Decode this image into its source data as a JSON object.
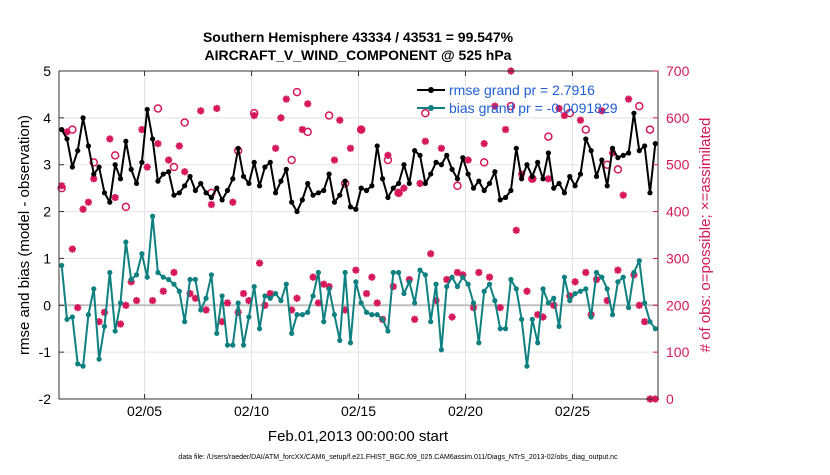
{
  "chart_data": {
    "type": "line",
    "title_line1": "Southern Hemisphere 43334 / 43531 = 99.547%",
    "title_line2": "AIRCRAFT_V_WIND_COMPONENT @ 525 hPa",
    "xlabel": "Feb.01,2013 00:00:00 start",
    "ylabel_left": "rmse and bias (model - observation)",
    "ylabel_right": "# of obs: o=possible; ×=assimilated",
    "footer": "data file: /Users/raeder/DAI/ATM_forcXX/CAM6_setup/f.e21.FHIST_BGC.f09_025.CAM6assim.011/Diags_NTrS_2013-02/obs_diag_output.nc",
    "xlim": [
      1.0,
      29.0
    ],
    "ylim_left": [
      -2,
      5
    ],
    "ylim_right": [
      0,
      700
    ],
    "x_ticks": [
      5,
      10,
      15,
      20,
      25
    ],
    "x_tick_labels": [
      "02/05",
      "02/10",
      "02/15",
      "02/20",
      "02/25"
    ],
    "y_ticks_left": [
      -2,
      -1,
      0,
      1,
      2,
      3,
      4,
      5
    ],
    "y_tick_labels_left": [
      "-2",
      "-1",
      "0",
      "1",
      "2",
      "3",
      "4",
      "5"
    ],
    "y_ticks_right": [
      0,
      100,
      200,
      300,
      400,
      500,
      600,
      700
    ],
    "y_tick_labels_right": [
      "0",
      "100",
      "200",
      "300",
      "400",
      "500",
      "600",
      "700"
    ],
    "grid": true,
    "legend_position": "top-right",
    "colors": {
      "rmse": "#000000",
      "bias": "#0f8080",
      "counts": "#d6185a",
      "legend_text": "#1f5fd6",
      "zero_line": "#bfbfbf",
      "grid": "#e3e3e3"
    },
    "x": [
      1.125,
      1.375,
      1.625,
      1.875,
      2.125,
      2.375,
      2.625,
      2.875,
      3.125,
      3.375,
      3.625,
      3.875,
      4.125,
      4.375,
      4.625,
      4.875,
      5.125,
      5.375,
      5.625,
      5.875,
      6.125,
      6.375,
      6.625,
      6.875,
      7.125,
      7.375,
      7.625,
      7.875,
      8.125,
      8.375,
      8.625,
      8.875,
      9.125,
      9.375,
      9.625,
      9.875,
      10.125,
      10.375,
      10.625,
      10.875,
      11.125,
      11.375,
      11.625,
      11.875,
      12.125,
      12.375,
      12.625,
      12.875,
      13.125,
      13.375,
      13.625,
      13.875,
      14.125,
      14.375,
      14.625,
      14.875,
      15.125,
      15.375,
      15.625,
      15.875,
      16.125,
      16.375,
      16.625,
      16.875,
      17.125,
      17.375,
      17.625,
      17.875,
      18.125,
      18.375,
      18.625,
      18.875,
      19.125,
      19.375,
      19.625,
      19.875,
      20.125,
      20.375,
      20.625,
      20.875,
      21.125,
      21.375,
      21.625,
      21.875,
      22.125,
      22.375,
      22.625,
      22.875,
      23.125,
      23.375,
      23.625,
      23.875,
      24.125,
      24.375,
      24.625,
      24.875,
      25.125,
      25.375,
      25.625,
      25.875,
      26.125,
      26.375,
      26.625,
      26.875,
      27.125,
      27.375,
      27.625,
      27.875,
      28.125,
      28.375,
      28.625,
      28.875
    ],
    "series": [
      {
        "name": "rmse",
        "legend_label": "rmse grand pr = 2.7916",
        "values": [
          3.75,
          3.55,
          2.95,
          3.3,
          4.0,
          3.4,
          2.8,
          2.95,
          2.4,
          2.2,
          3.0,
          2.7,
          3.5,
          2.9,
          2.6,
          3.05,
          4.18,
          3.55,
          2.65,
          2.8,
          2.85,
          2.35,
          2.4,
          2.55,
          2.75,
          2.45,
          2.6,
          2.4,
          2.3,
          2.5,
          2.25,
          2.45,
          2.7,
          3.35,
          2.75,
          2.6,
          3.05,
          2.55,
          2.95,
          3.05,
          2.4,
          2.65,
          2.9,
          2.2,
          2.0,
          2.25,
          2.6,
          2.35,
          2.4,
          2.45,
          2.8,
          2.2,
          2.35,
          2.65,
          2.1,
          2.05,
          2.5,
          2.45,
          2.55,
          3.4,
          2.7,
          2.3,
          2.5,
          2.6,
          3.0,
          2.6,
          3.3,
          3.2,
          2.6,
          2.8,
          3.05,
          3.0,
          3.2,
          2.9,
          2.7,
          3.15,
          2.8,
          2.5,
          2.65,
          2.45,
          2.6,
          2.85,
          2.25,
          2.3,
          2.45,
          3.35,
          2.7,
          3.0,
          2.75,
          3.05,
          2.7,
          3.25,
          2.5,
          2.6,
          2.4,
          2.75,
          2.55,
          2.8,
          3.55,
          3.3,
          2.75,
          3.1,
          2.55,
          3.35,
          3.15,
          3.2,
          3.25,
          4.1,
          3.3,
          3.4,
          2.4,
          3.45
        ]
      },
      {
        "name": "bias",
        "legend_label": "bias grand pr = -0.0091829",
        "values": [
          0.85,
          -0.3,
          -0.25,
          -1.25,
          -1.3,
          -0.2,
          0.35,
          -1.15,
          -0.45,
          0.7,
          -0.55,
          0.05,
          1.35,
          0.55,
          0.65,
          1.1,
          0.6,
          1.9,
          0.7,
          0.6,
          0.55,
          0.45,
          0.3,
          -0.35,
          0.55,
          0.55,
          -0.1,
          0.15,
          0.65,
          -0.6,
          0.2,
          -0.85,
          -0.85,
          0.05,
          -0.85,
          -0.25,
          0.4,
          -0.5,
          0.2,
          0.15,
          0.25,
          0.1,
          0.45,
          -0.6,
          -0.2,
          -0.2,
          -0.15,
          0.2,
          0.7,
          -0.35,
          0.35,
          -0.2,
          -0.75,
          0.7,
          -0.8,
          0.5,
          0.05,
          -0.15,
          -0.2,
          -0.2,
          -0.3,
          -0.55,
          0.7,
          0.7,
          0.25,
          0.5,
          0.05,
          0.75,
          0.65,
          -0.35,
          0.45,
          -0.95,
          0.4,
          0.6,
          0.4,
          0.6,
          0.45,
          0.05,
          -0.8,
          0.3,
          0.45,
          0.1,
          -0.5,
          -0.5,
          0.55,
          0.35,
          -0.3,
          -1.3,
          -0.3,
          -0.8,
          0.35,
          0.05,
          0.15,
          -0.45,
          0.6,
          0.1,
          0.25,
          0.3,
          0.35,
          -0.25,
          0.7,
          0.6,
          0.35,
          -0.2,
          0.5,
          0.6,
          -0.05,
          0.7,
          0.95,
          0.05,
          -0.35,
          -0.5
        ]
      }
    ],
    "obs_possible_x": [
      1.125,
      1.625,
      2.625,
      3.625,
      4.125,
      5.625,
      6.375,
      6.875,
      8.125,
      9.375,
      10.125,
      11.875,
      12.125,
      12.625,
      13.625,
      14.375,
      15.125,
      16.375,
      16.875,
      18.125,
      19.625,
      20.875,
      22.125,
      23.125,
      23.875,
      24.875,
      25.625,
      26.625,
      27.125,
      28.125,
      28.625
    ],
    "obs_possible_counts": [
      450,
      575,
      505,
      520,
      410,
      620,
      495,
      590,
      440,
      530,
      610,
      510,
      655,
      570,
      605,
      460,
      575,
      510,
      440,
      610,
      455,
      505,
      625,
      470,
      560,
      610,
      575,
      500,
      490,
      625,
      575
    ],
    "obs_assimilated_x": [
      1.125,
      1.375,
      1.625,
      1.875,
      2.125,
      2.375,
      2.625,
      2.875,
      3.125,
      3.375,
      3.625,
      3.875,
      4.125,
      4.375,
      4.625,
      4.875,
      5.125,
      5.375,
      5.625,
      5.875,
      6.125,
      6.375,
      6.625,
      6.875,
      7.125,
      7.375,
      7.625,
      7.875,
      8.125,
      8.375,
      8.625,
      8.875,
      9.125,
      9.375,
      9.625,
      9.875,
      10.125,
      10.375,
      10.625,
      10.875,
      11.125,
      11.375,
      11.625,
      11.875,
      12.125,
      12.375,
      12.625,
      12.875,
      13.125,
      13.375,
      13.625,
      13.875,
      14.125,
      14.375,
      14.625,
      14.875,
      15.125,
      15.375,
      15.625,
      15.875,
      16.125,
      16.375,
      16.625,
      16.875,
      17.125,
      17.375,
      17.625,
      17.875,
      18.125,
      18.375,
      18.625,
      18.875,
      19.125,
      19.375,
      19.625,
      19.875,
      20.125,
      20.375,
      20.625,
      20.875,
      21.125,
      21.375,
      21.625,
      21.875,
      22.125,
      22.375,
      22.625,
      22.875,
      23.125,
      23.375,
      23.625,
      23.875,
      24.125,
      24.375,
      24.625,
      24.875,
      25.125,
      25.375,
      25.625,
      25.875,
      26.125,
      26.375,
      26.625,
      26.875,
      27.125,
      27.375,
      27.625,
      27.875,
      28.125,
      28.375,
      28.625,
      28.875
    ],
    "obs_assimilated_counts": [
      455,
      570,
      320,
      195,
      405,
      420,
      470,
      165,
      185,
      555,
      430,
      160,
      200,
      250,
      210,
      575,
      495,
      210,
      545,
      230,
      510,
      270,
      540,
      485,
      225,
      215,
      615,
      190,
      415,
      620,
      165,
      205,
      420,
      185,
      225,
      210,
      605,
      290,
      200,
      225,
      535,
      600,
      640,
      190,
      215,
      575,
      630,
      260,
      205,
      245,
      240,
      510,
      595,
      190,
      535,
      275,
      575,
      225,
      260,
      205,
      170,
      520,
      240,
      440,
      450,
      255,
      170,
      460,
      550,
      310,
      210,
      535,
      255,
      175,
      270,
      265,
      510,
      195,
      270,
      545,
      260,
      625,
      195,
      575,
      700,
      360,
      480,
      230,
      470,
      180,
      175,
      470,
      200,
      620,
      605,
      220,
      250,
      595,
      270,
      180,
      255,
      615,
      210,
      525,
      275,
      435,
      640,
      265,
      200,
      165,
      0,
      0
    ]
  }
}
